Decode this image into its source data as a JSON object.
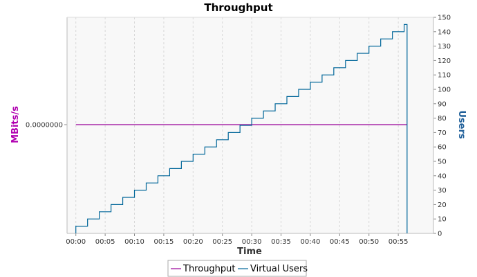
{
  "chart_data": {
    "type": "line",
    "title": "Throughput",
    "xlabel": "Time",
    "ylabel_left": "MBits/s",
    "ylabel_right": "Users",
    "x_ticks": [
      "00:00",
      "00:05",
      "00:10",
      "00:15",
      "00:20",
      "00:25",
      "00:30",
      "00:35",
      "00:40",
      "00:45",
      "00:50",
      "00:55"
    ],
    "x_range_minutes": [
      -1.5,
      61.0
    ],
    "left_axis": {
      "ticks": [
        "0.0000000"
      ],
      "value": 0.0
    },
    "right_axis": {
      "ylim": [
        0,
        150
      ],
      "ticks": [
        0,
        10,
        20,
        30,
        40,
        50,
        60,
        70,
        80,
        90,
        100,
        110,
        120,
        130,
        140,
        150
      ]
    },
    "grid": true,
    "legend_position": "bottom",
    "series": [
      {
        "name": "Throughput",
        "axis": "left",
        "color": "#990099",
        "x_minutes": [
          0,
          56.5
        ],
        "values": [
          0.0,
          0.0
        ]
      },
      {
        "name": "Virtual Users",
        "axis": "right",
        "color": "#006699",
        "step_minutes": 2,
        "step_users": 5,
        "start_minutes": 0,
        "end_minutes": 56.5,
        "peak_users": 145,
        "final_users": 0
      }
    ],
    "colors": {
      "plot_background": "#f8f8f8",
      "grid": "#d8d8d8",
      "left_axis_title": "#b000b0",
      "right_axis_title": "#1f5f99"
    }
  }
}
